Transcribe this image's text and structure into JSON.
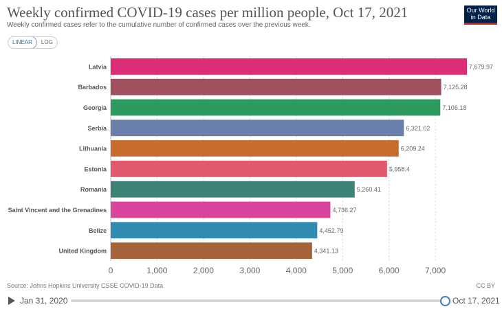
{
  "header": {
    "title": "Weekly confirmed COVID-19 cases per million people, Oct 17, 2021",
    "subtitle": "Weekly confirmed cases refer to the cumulative number of confirmed cases over the previous week.",
    "logo_line1": "Our World",
    "logo_line2": "in Data"
  },
  "scale_toggle": {
    "linear": "LINEAR",
    "log": "LOG",
    "selected": "LINEAR"
  },
  "chart_data": {
    "type": "bar",
    "orientation": "horizontal",
    "categories": [
      "Latvia",
      "Barbados",
      "Georgia",
      "Serbia",
      "Lithuania",
      "Estonia",
      "Romania",
      "Saint Vincent and the Grenadines",
      "Belize",
      "United Kingdom"
    ],
    "values": [
      7679.97,
      7125.28,
      7106.18,
      6321.02,
      6209.24,
      5958.4,
      5260.41,
      4736.27,
      4452.79,
      4341.13
    ],
    "value_labels": [
      "7,679.97",
      "7,125.28",
      "7,106.18",
      "6,321.02",
      "6,209.24",
      "5,958.4",
      "5,260.41",
      "4,736.27",
      "4,452.79",
      "4,341.13"
    ],
    "colors": [
      "#dd2d78",
      "#a0515d",
      "#2d9b5f",
      "#6a7fa9",
      "#c86b2c",
      "#df5a6d",
      "#3f8277",
      "#d9449e",
      "#2f8bb2",
      "#a6633a"
    ],
    "xlim": [
      0,
      7679.97
    ],
    "xticks": [
      0,
      1000,
      2000,
      3000,
      4000,
      5000,
      6000,
      7000
    ],
    "xtick_labels": [
      "0",
      "1,000",
      "2,000",
      "3,000",
      "4,000",
      "5,000",
      "6,000",
      "7,000"
    ],
    "grid": true
  },
  "footer": {
    "source": "Source: Johns Hopkins University CSSE COVID-19 Data",
    "license": "CC BY"
  },
  "timeline": {
    "start": "Jan 31, 2020",
    "end": "Oct 17, 2021",
    "position": 1.0
  }
}
